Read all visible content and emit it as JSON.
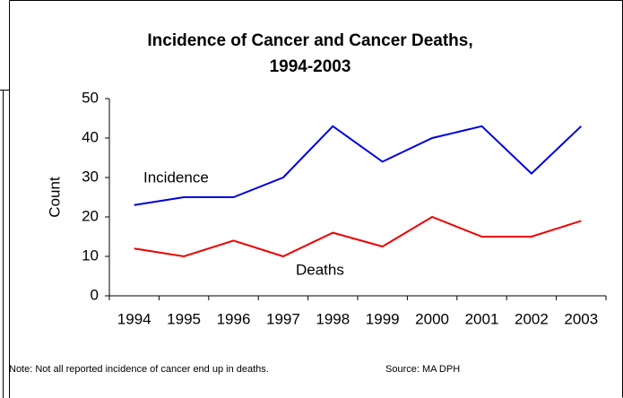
{
  "chart_data": {
    "type": "line",
    "title": [
      "Incidence of Cancer and Cancer Deaths,",
      "1994-2003"
    ],
    "ylabel": "Count",
    "categories": [
      "1994",
      "1995",
      "1996",
      "1997",
      "1998",
      "1999",
      "2000",
      "2001",
      "2002",
      "2003"
    ],
    "series": [
      {
        "name": "Incidence",
        "color": "#0000dd",
        "values": [
          23,
          25,
          25,
          30,
          43,
          34,
          40,
          43,
          31,
          43
        ]
      },
      {
        "name": "Deaths",
        "color": "#ee0000",
        "values": [
          12,
          10,
          14,
          10,
          16,
          12.5,
          20,
          15,
          15,
          19
        ]
      }
    ],
    "ylim": [
      0,
      50
    ],
    "yticks": [
      0,
      10,
      20,
      30,
      40,
      50
    ],
    "note": "Note: Not all reported incidence of cancer end up in deaths.",
    "source": "Source: MA DPH"
  }
}
